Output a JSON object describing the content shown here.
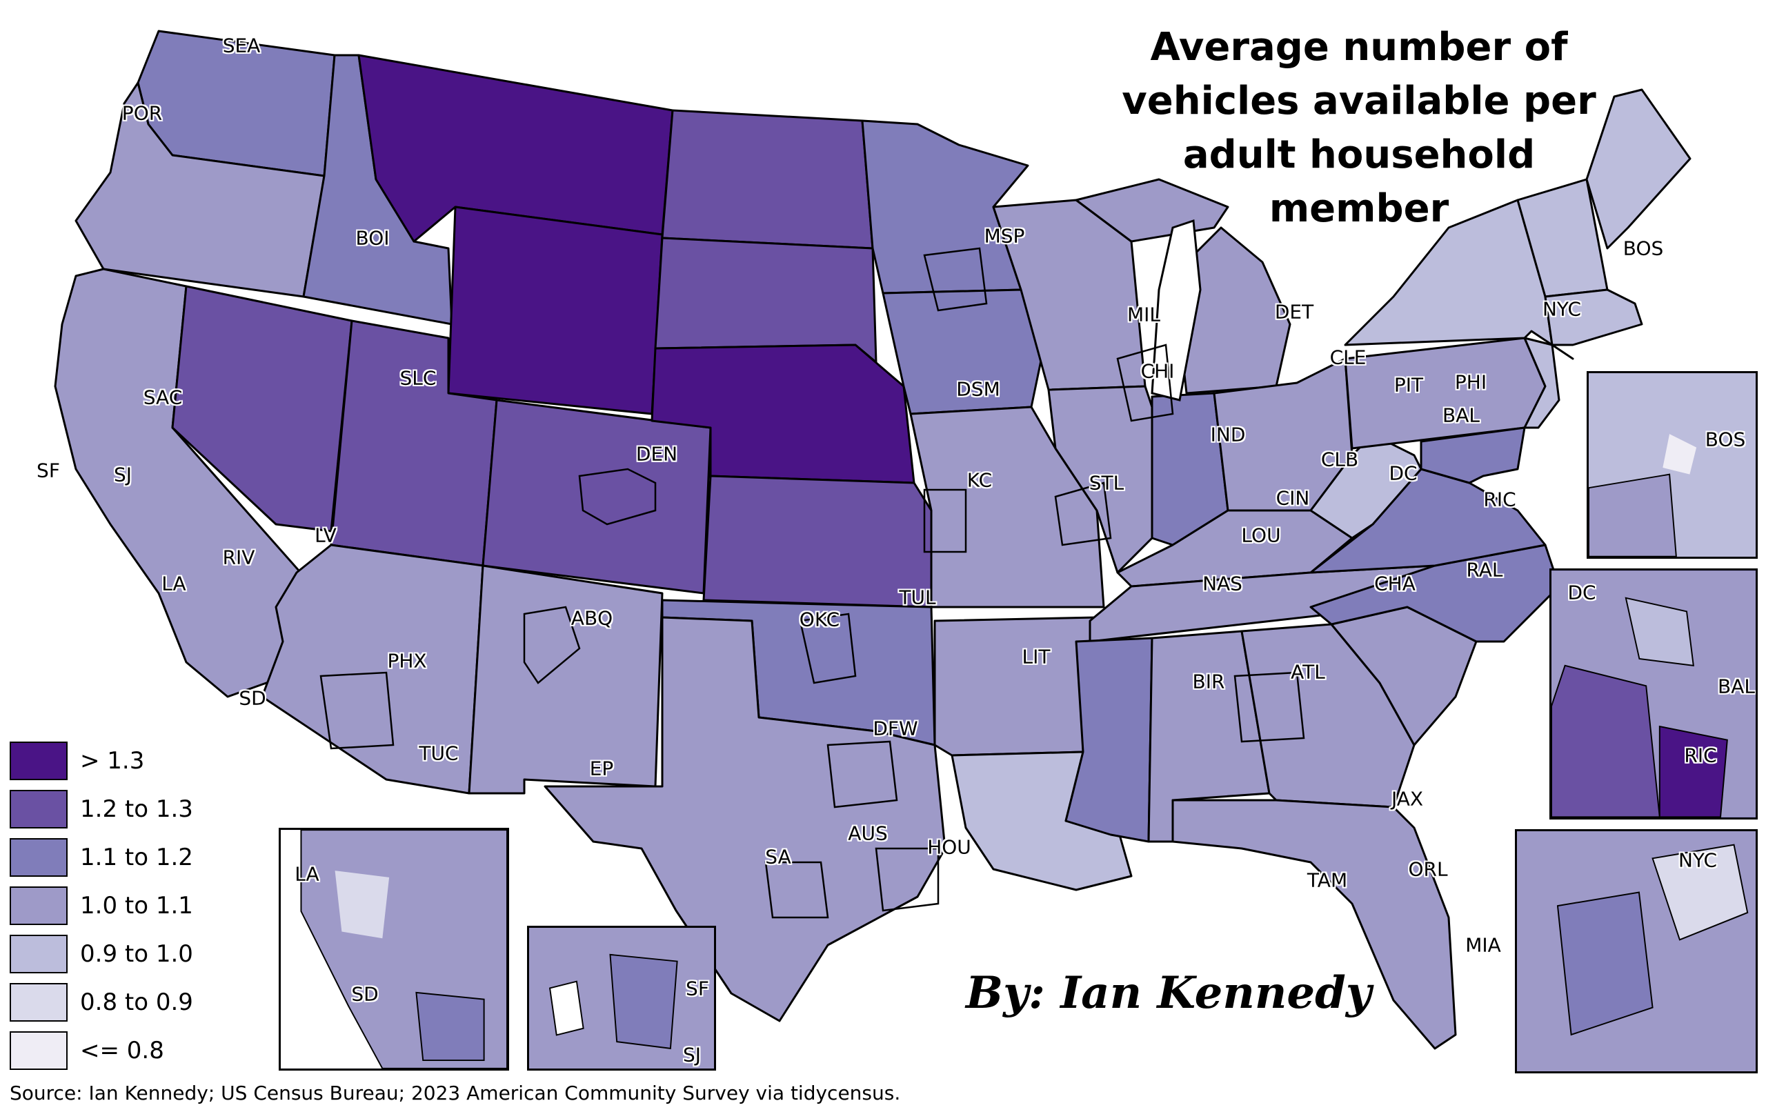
{
  "title": {
    "line1": "Average number of",
    "line2": "vehicles available per",
    "line3": "adult household",
    "line4": "member"
  },
  "legend": [
    {
      "label": "> 1.3",
      "color": "#4a1486"
    },
    {
      "label": "1.2 to 1.3",
      "color": "#6a51a3"
    },
    {
      "label": "1.1 to 1.2",
      "color": "#807dba"
    },
    {
      "label": "1.0 to 1.1",
      "color": "#9e9ac8"
    },
    {
      "label": "0.9 to 1.0",
      "color": "#bcbddc"
    },
    {
      "label": "0.8 to 0.9",
      "color": "#dadaeb"
    },
    {
      "label": "<= 0.8",
      "color": "#efedf5"
    }
  ],
  "byline": "By: Ian Kennedy",
  "source": "Source: Ian Kennedy; US Census Bureau; 2023 American Community Survey via tidycensus.",
  "cities": {
    "sea": "SEA",
    "por": "POR",
    "boi": "BOI",
    "sac": "SAC",
    "sf": "SF",
    "sj": "SJ",
    "slc": "SLC",
    "lv": "LV",
    "riv": "RIV",
    "la": "LA",
    "sd": "SD",
    "phx": "PHX",
    "tuc": "TUC",
    "abq": "ABQ",
    "ep": "EP",
    "den": "DEN",
    "msp": "MSP",
    "dsm": "DSM",
    "kc": "KC",
    "okc": "OKC",
    "tul": "TUL",
    "dfw": "DFW",
    "sa": "SA",
    "aus": "AUS",
    "hou": "HOU",
    "lit": "LIT",
    "stl": "STL",
    "mil": "MIL",
    "chi": "CHI",
    "det": "DET",
    "ind": "IND",
    "cin": "CIN",
    "lou": "LOU",
    "clb": "CLB",
    "cle": "CLE",
    "pit": "PIT",
    "phi": "PHI",
    "bal": "BAL",
    "dc": "DC",
    "ric": "RIC",
    "nyc": "NYC",
    "bos": "BOS",
    "nas": "NAS",
    "cha": "CHA",
    "ral": "RAL",
    "atl": "ATL",
    "bir": "BIR",
    "jax": "JAX",
    "orl": "ORL",
    "tam": "TAM",
    "mia": "MIA"
  },
  "insets": {
    "bos": {
      "label": "BOS"
    },
    "dc": {
      "dc": "DC",
      "bal": "BAL",
      "ric": "RIC"
    },
    "nyc": {
      "label": "NYC"
    },
    "la": {
      "la": "LA",
      "sd": "SD"
    },
    "sf": {
      "sf": "SF",
      "sj": "SJ"
    }
  }
}
